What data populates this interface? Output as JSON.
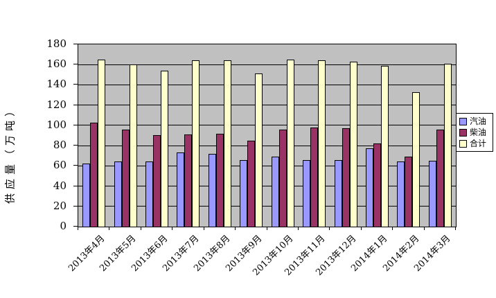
{
  "chart_data": {
    "type": "bar",
    "title": "",
    "ylabel": "供应量（万吨）",
    "xlabel": "",
    "categories": [
      "2013年4月",
      "2013年5月",
      "2013年6月",
      "2013年7月",
      "2013年8月",
      "2013年9月",
      "2013年10月",
      "2013年11月",
      "2013年12月",
      "2014年1月",
      "2014年2月",
      "2014年3月"
    ],
    "series": [
      {
        "key": "gasoline",
        "name": "汽油",
        "color": "#9999FF",
        "values": [
          62,
          64,
          64,
          73,
          72,
          66,
          69,
          66,
          66,
          77,
          64,
          65
        ]
      },
      {
        "key": "diesel",
        "name": "柴油",
        "color": "#993366",
        "values": [
          103,
          96,
          90,
          91,
          92,
          85,
          96,
          98,
          97,
          82,
          69,
          96
        ]
      },
      {
        "key": "total",
        "name": "合计",
        "color": "#FFFFCC",
        "values": [
          165,
          160,
          154,
          164,
          164,
          151,
          165,
          164,
          163,
          159,
          133,
          161
        ]
      }
    ],
    "ylim": [
      0,
      180
    ],
    "ytick_step": 20,
    "yticks": [
      0,
      20,
      40,
      60,
      80,
      100,
      120,
      140,
      160,
      180
    ],
    "legend_position": "right",
    "legend_entries": [
      "汽油",
      "柴油",
      "合计"
    ],
    "plot_background": "#C0C0C0",
    "gridline_color": "#000000",
    "bar_border_color": "#000000",
    "grid": true
  }
}
